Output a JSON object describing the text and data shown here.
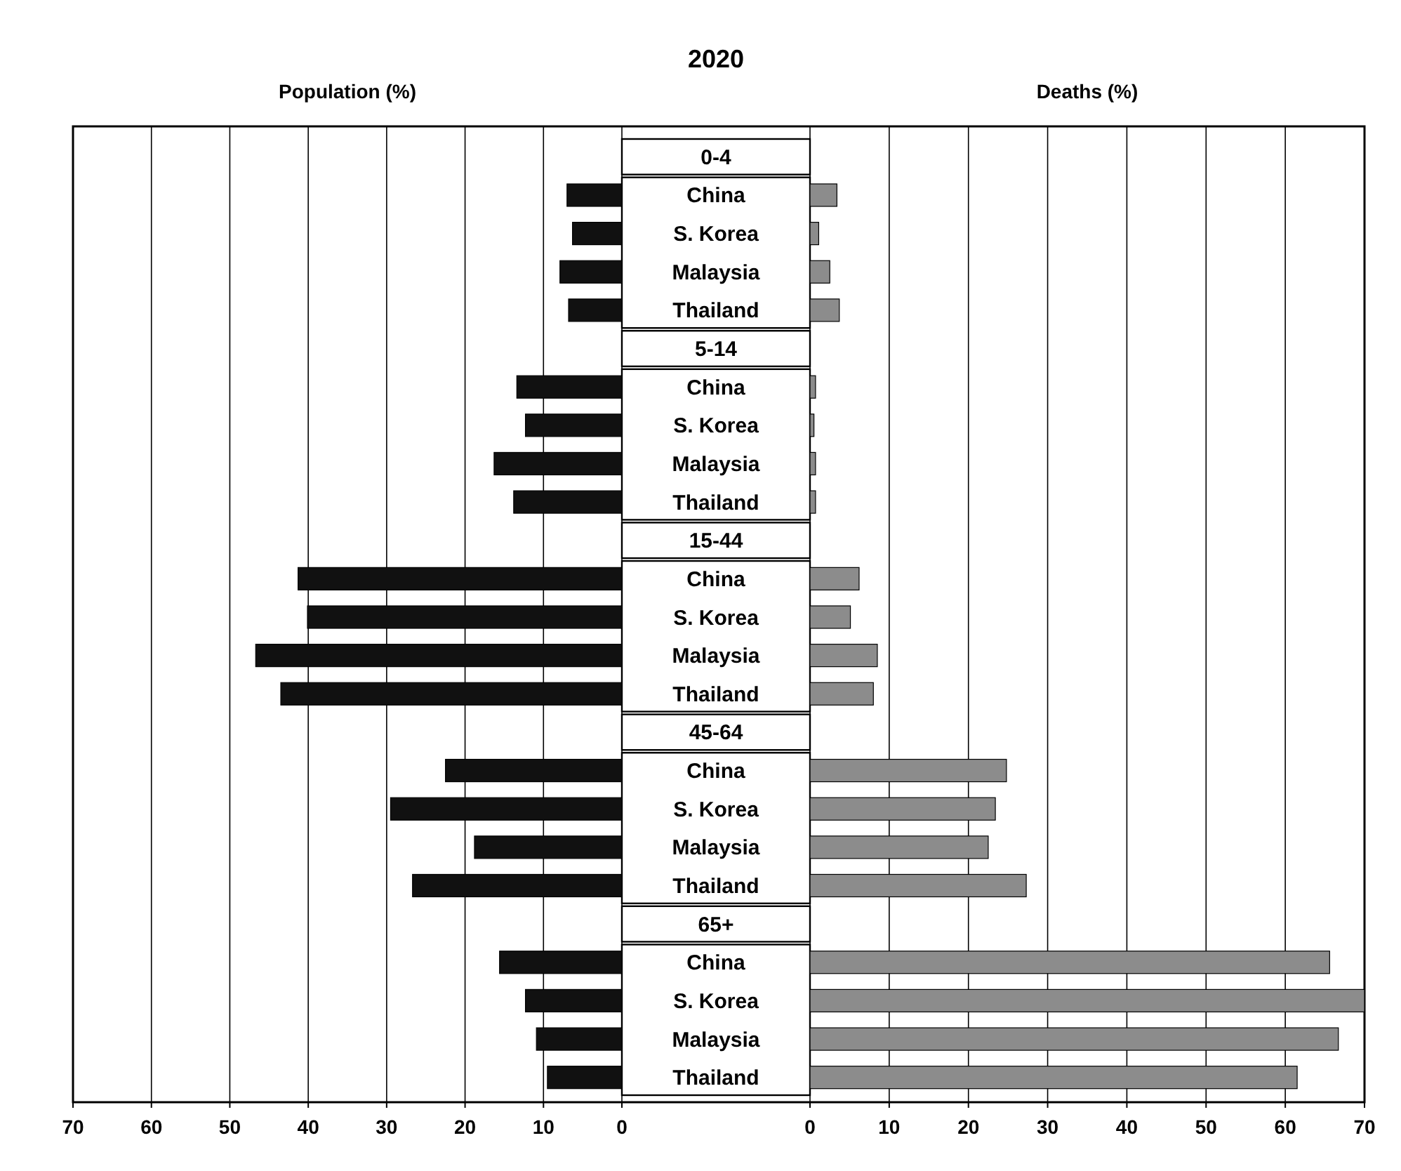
{
  "chart_data": [
    {
      "type": "bar",
      "orientation": "horizontal",
      "title": "2020",
      "xlabel": "Population (%)",
      "categories": [
        "0-4",
        "China",
        "S. Korea",
        "Malaysia",
        "Thailand",
        "5-14",
        "China",
        "S. Korea",
        "Malaysia",
        "Thailand",
        "15-44",
        "China",
        "S. Korea",
        "Malaysia",
        "Thailand",
        "45-64",
        "China",
        "S. Korea",
        "Malaysia",
        "Thailand",
        "65+",
        "China",
        "S. Korea",
        "Malaysia",
        "Thailand"
      ],
      "values": [
        null,
        7.0,
        6.3,
        7.9,
        6.8,
        null,
        13.4,
        12.3,
        16.3,
        13.8,
        null,
        41.3,
        40.1,
        46.7,
        43.5,
        null,
        22.5,
        29.5,
        18.8,
        26.7,
        null,
        15.6,
        12.3,
        10.9,
        9.5
      ],
      "color": "#111111",
      "xlim": [
        70,
        0
      ],
      "xticks": [
        70,
        60,
        50,
        40,
        30,
        20,
        10,
        0
      ],
      "grid": "x"
    },
    {
      "type": "bar",
      "orientation": "horizontal",
      "xlabel": "Deaths (%)",
      "values": [
        null,
        3.4,
        1.1,
        2.5,
        3.7,
        null,
        0.7,
        0.5,
        0.7,
        0.7,
        null,
        6.2,
        5.1,
        8.5,
        8.0,
        null,
        24.8,
        23.4,
        22.5,
        27.3,
        null,
        65.6,
        70,
        66.7,
        61.5
      ],
      "color": "#8c8c8c",
      "xlim": [
        0,
        70
      ],
      "xticks": [
        0,
        10,
        20,
        30,
        40,
        50,
        60,
        70
      ],
      "grid": "x",
      "tick_labels": "x"
    }
  ]
}
